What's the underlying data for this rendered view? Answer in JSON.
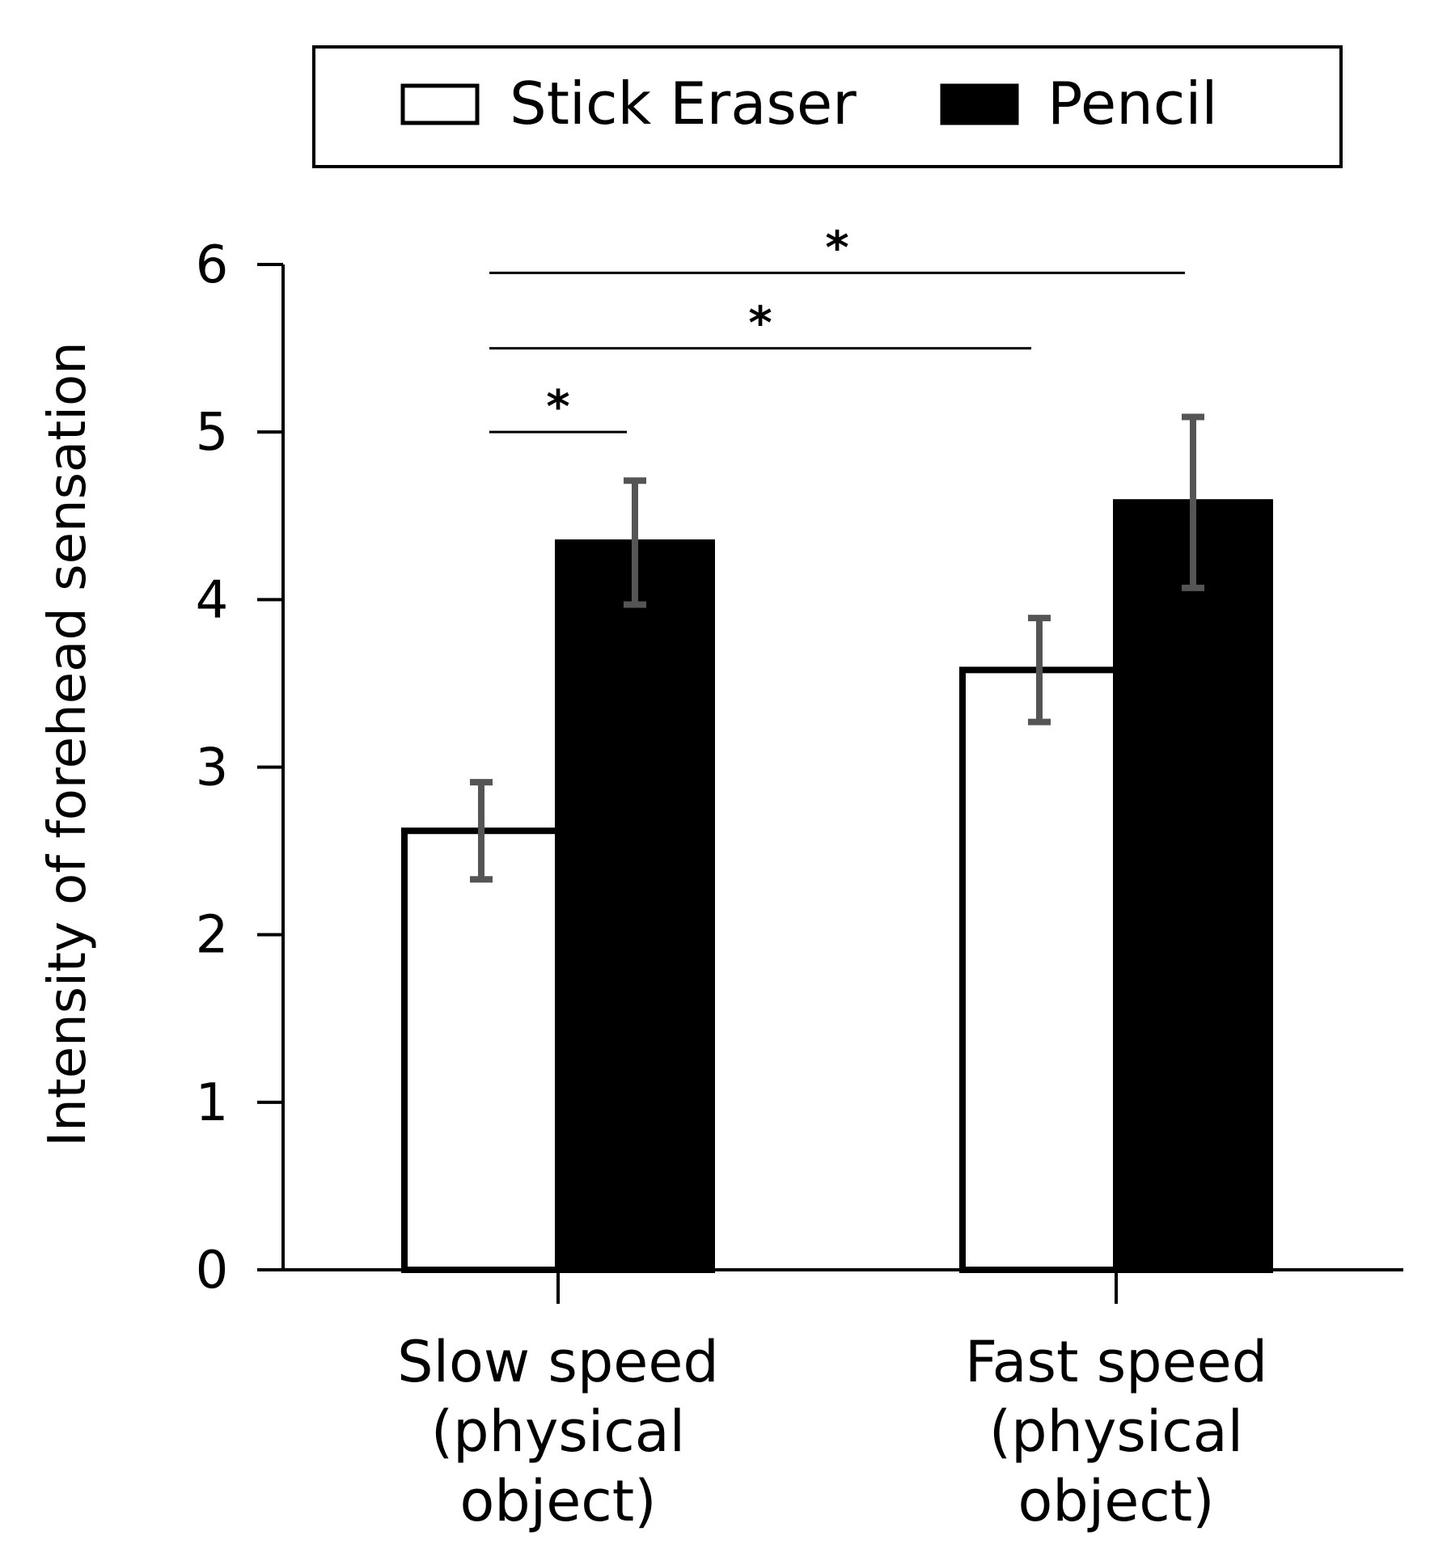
{
  "chart_data": {
    "type": "bar",
    "title": "",
    "xlabel": "",
    "ylabel": "Intensity of forehead sensation",
    "ylim": [
      0,
      6
    ],
    "yticks": [
      0,
      1,
      2,
      3,
      4,
      5,
      6
    ],
    "categories": [
      [
        "Slow speed",
        "(physical",
        "object)"
      ],
      [
        "Fast speed",
        "(physical",
        "object)"
      ]
    ],
    "series": [
      {
        "name": "Stick Eraser",
        "fill": "#ffffff",
        "stroke": "#000000",
        "values": [
          2.62,
          3.58
        ],
        "errors": [
          0.29,
          0.31
        ]
      },
      {
        "name": "Pencil",
        "fill": "#000000",
        "stroke": "#000000",
        "values": [
          4.34,
          4.58
        ],
        "errors": [
          0.37,
          0.51
        ]
      }
    ],
    "significance": [
      {
        "from": [
          0,
          0
        ],
        "to": [
          0,
          1
        ],
        "level": 5.0,
        "label": "*"
      },
      {
        "from": [
          0,
          0
        ],
        "to": [
          1,
          0
        ],
        "level": 5.5,
        "label": "*"
      },
      {
        "from": [
          0,
          0
        ],
        "to": [
          1,
          1
        ],
        "level": 5.95,
        "label": "*"
      }
    ],
    "error_color": "#555555",
    "legend": {
      "position": "top-center",
      "entries": [
        "Stick Eraser",
        "Pencil"
      ]
    },
    "grid": false
  }
}
